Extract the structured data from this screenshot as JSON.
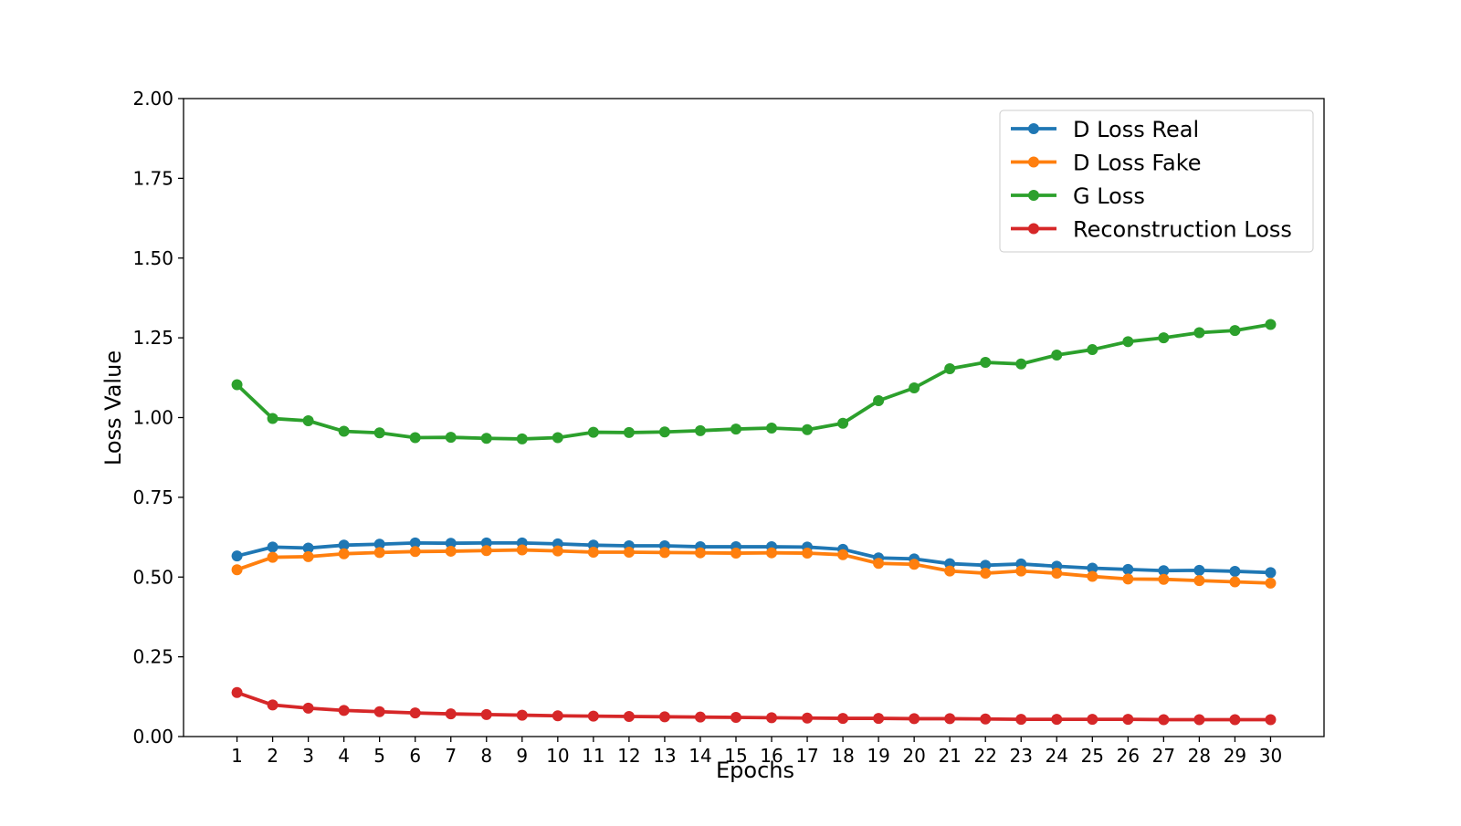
{
  "chart_data": {
    "type": "line",
    "title": "",
    "xlabel": "Epochs",
    "ylabel": "Loss Value",
    "x": [
      1,
      2,
      3,
      4,
      5,
      6,
      7,
      8,
      9,
      10,
      11,
      12,
      13,
      14,
      15,
      16,
      17,
      18,
      19,
      20,
      21,
      22,
      23,
      24,
      25,
      26,
      27,
      28,
      29,
      30
    ],
    "xlim": [
      -0.5,
      31.5
    ],
    "ylim": [
      0,
      2
    ],
    "yticks": [
      "0.00",
      "0.25",
      "0.50",
      "0.75",
      "1.00",
      "1.25",
      "1.50",
      "1.75",
      "2.00"
    ],
    "grid": false,
    "legend_position": "top-right",
    "series": [
      {
        "name": "D Loss Real",
        "color": "#1f77b4",
        "values": [
          0.566,
          0.594,
          0.591,
          0.6,
          0.603,
          0.607,
          0.606,
          0.607,
          0.607,
          0.604,
          0.6,
          0.598,
          0.598,
          0.595,
          0.595,
          0.595,
          0.594,
          0.587,
          0.56,
          0.557,
          0.542,
          0.537,
          0.541,
          0.534,
          0.528,
          0.524,
          0.52,
          0.521,
          0.518,
          0.514
        ]
      },
      {
        "name": "D Loss Fake",
        "color": "#ff7f0e",
        "values": [
          0.523,
          0.562,
          0.564,
          0.573,
          0.577,
          0.58,
          0.581,
          0.583,
          0.585,
          0.582,
          0.578,
          0.578,
          0.577,
          0.576,
          0.575,
          0.576,
          0.575,
          0.57,
          0.543,
          0.54,
          0.519,
          0.512,
          0.519,
          0.512,
          0.502,
          0.494,
          0.493,
          0.489,
          0.485,
          0.481
        ]
      },
      {
        "name": "G Loss",
        "color": "#2ca02c",
        "values": [
          1.103,
          0.997,
          0.99,
          0.957,
          0.952,
          0.937,
          0.938,
          0.935,
          0.933,
          0.937,
          0.954,
          0.953,
          0.955,
          0.959,
          0.964,
          0.967,
          0.962,
          0.982,
          1.053,
          1.093,
          1.153,
          1.173,
          1.168,
          1.196,
          1.213,
          1.238,
          1.25,
          1.266,
          1.273,
          1.292
        ]
      },
      {
        "name": "Reconstruction Loss",
        "color": "#d62728",
        "values": [
          0.138,
          0.099,
          0.089,
          0.082,
          0.078,
          0.074,
          0.071,
          0.069,
          0.067,
          0.065,
          0.064,
          0.063,
          0.062,
          0.061,
          0.06,
          0.059,
          0.058,
          0.057,
          0.057,
          0.056,
          0.056,
          0.055,
          0.054,
          0.054,
          0.054,
          0.054,
          0.053,
          0.053,
          0.053,
          0.053
        ]
      }
    ]
  }
}
